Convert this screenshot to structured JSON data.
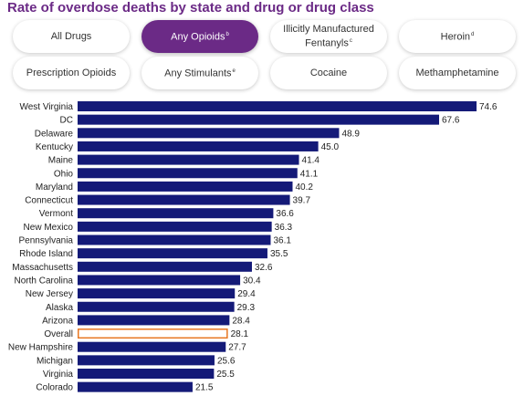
{
  "title": "Rate of overdose deaths by state and drug or drug class",
  "filters": [
    {
      "label": "All Drugs",
      "sup": "",
      "active": false
    },
    {
      "label": "Any Opioids",
      "sup": "b",
      "active": true
    },
    {
      "label": "Illicitly Manufactured Fentanyls",
      "sup": "c",
      "active": false
    },
    {
      "label": "Heroin",
      "sup": "d",
      "active": false
    },
    {
      "label": "Prescription Opioids",
      "sup": "",
      "active": false
    },
    {
      "label": "Any Stimulants",
      "sup": "e",
      "active": false
    },
    {
      "label": "Cocaine",
      "sup": "",
      "active": false
    },
    {
      "label": "Methamphetamine",
      "sup": "",
      "active": false
    }
  ],
  "colors": {
    "bar": "#141a78",
    "highlight_outline": "#e87722",
    "accent": "#6b2a86"
  },
  "chart_data": {
    "type": "bar",
    "orientation": "horizontal",
    "categories": [
      "West Virginia",
      "DC",
      "Delaware",
      "Kentucky",
      "Maine",
      "Ohio",
      "Maryland",
      "Connecticut",
      "Vermont",
      "New Mexico",
      "Pennsylvania",
      "Rhode Island",
      "Massachusetts",
      "North Carolina",
      "New Jersey",
      "Alaska",
      "Arizona",
      "Overall",
      "New Hampshire",
      "Michigan",
      "Virginia",
      "Colorado"
    ],
    "values": [
      74.6,
      67.6,
      48.9,
      45.0,
      41.4,
      41.1,
      40.2,
      39.7,
      36.6,
      36.3,
      36.1,
      35.5,
      32.6,
      30.4,
      29.4,
      29.3,
      28.4,
      28.1,
      27.7,
      25.6,
      25.5,
      21.5
    ],
    "value_labels": [
      "74.6",
      "67.6",
      "48.9",
      "45.0",
      "41.4",
      "41.1",
      "40.2",
      "39.7",
      "36.6",
      "36.3",
      "36.1",
      "35.5",
      "32.6",
      "30.4",
      "29.4",
      "29.3",
      "28.4",
      "28.1",
      "27.7",
      "25.6",
      "25.5",
      "21.5"
    ],
    "highlight": "Overall",
    "grid": false
  }
}
